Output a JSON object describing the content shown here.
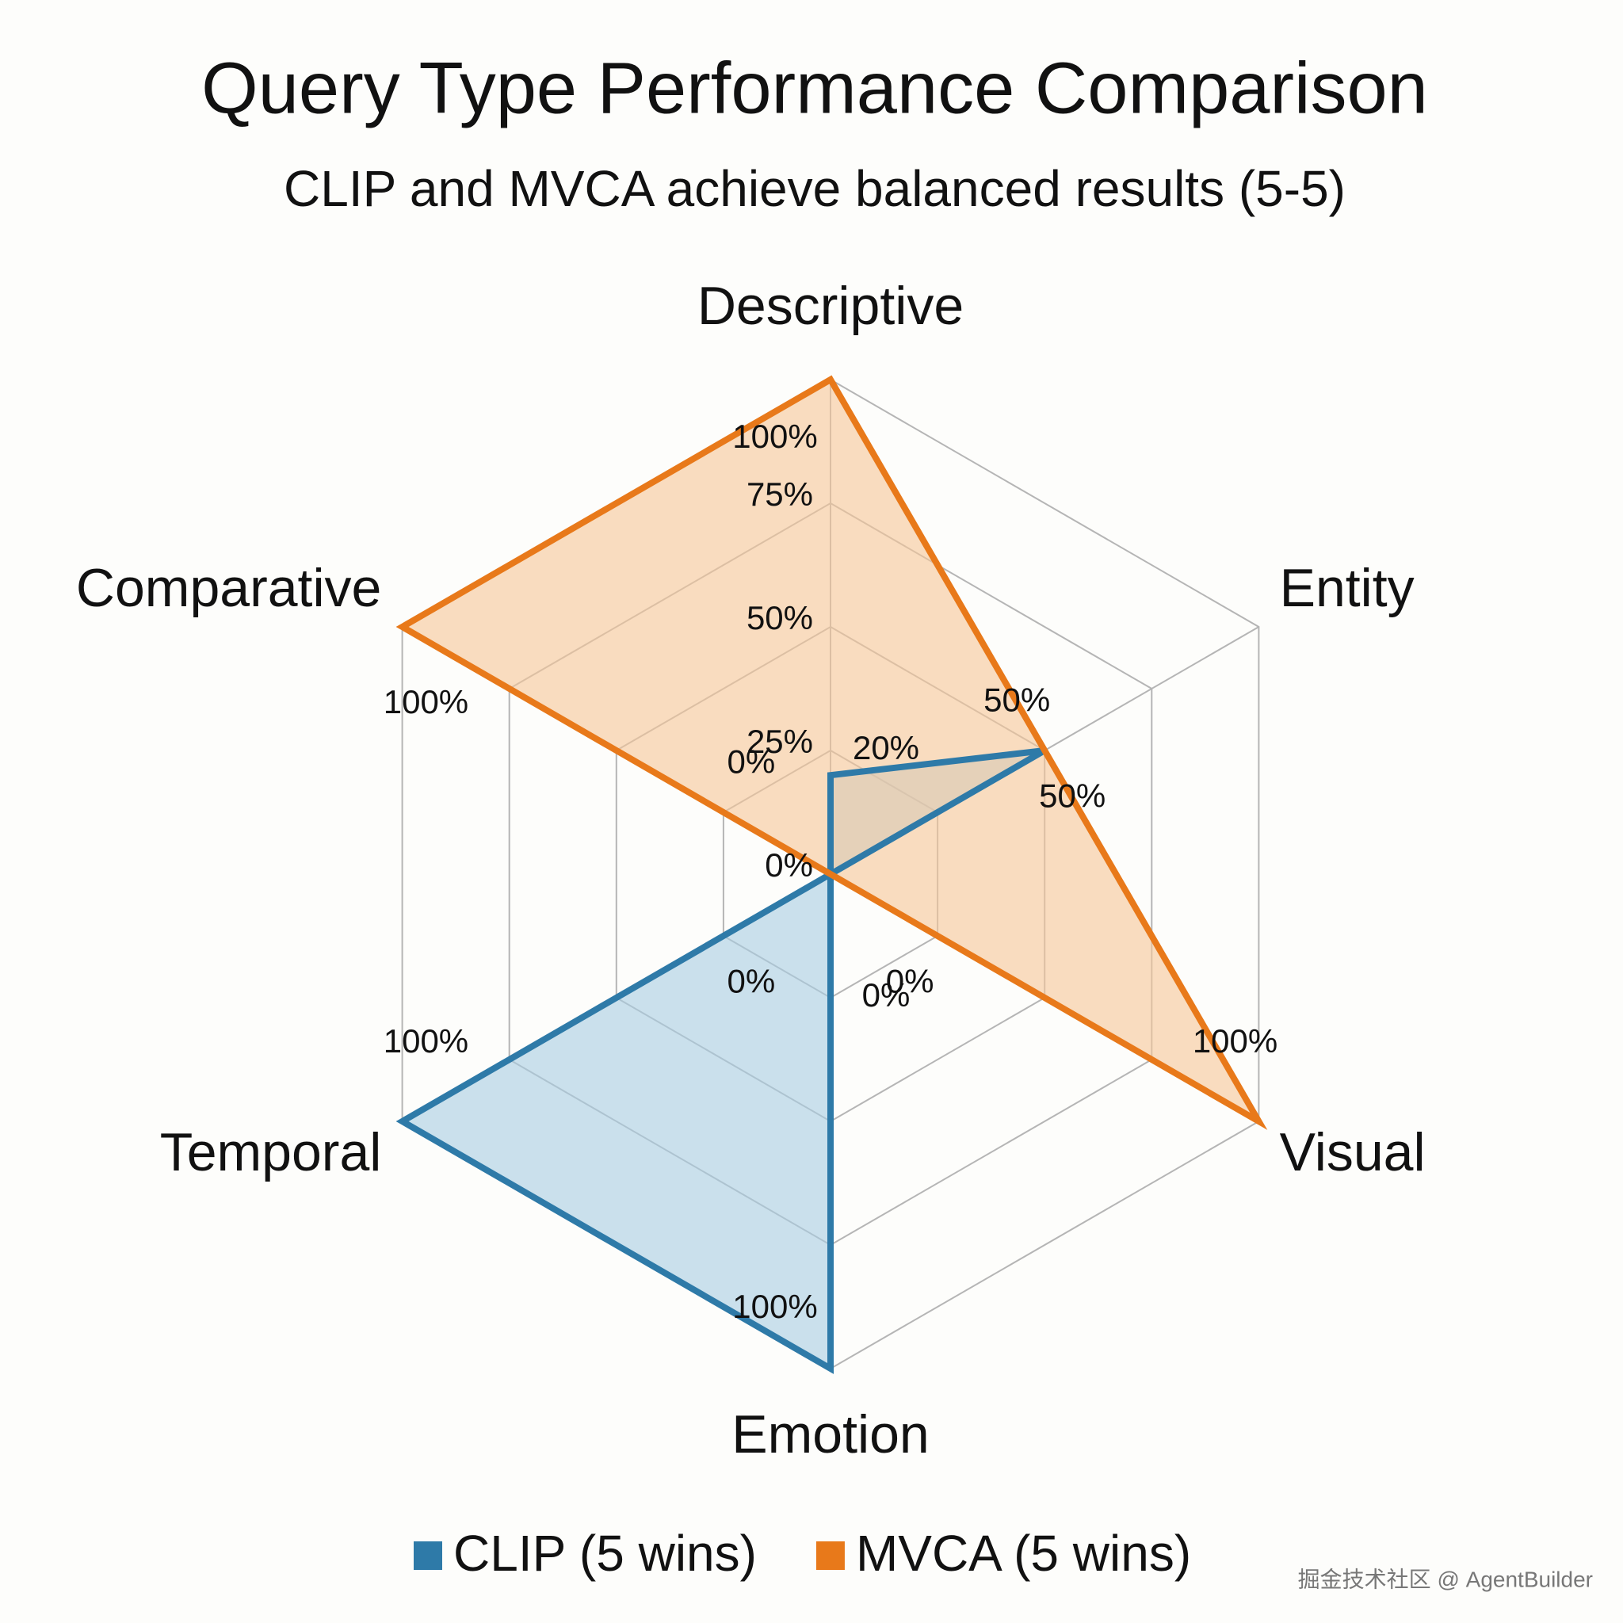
{
  "chart_data": {
    "type": "radar",
    "title": "Query Type Performance Comparison",
    "subtitle": "CLIP and MVCA achieve balanced results (5-5)",
    "categories": [
      "Descriptive",
      "Entity",
      "Visual",
      "Emotion",
      "Temporal",
      "Comparative"
    ],
    "series": [
      {
        "name": "CLIP (5 wins)",
        "color": "#2e7aa8",
        "fill": "#a9cde3",
        "values": [
          20,
          50,
          0,
          100,
          100,
          0
        ],
        "value_labels": [
          "20%",
          "50%",
          "0%",
          "100%",
          "100%",
          "0%"
        ]
      },
      {
        "name": "MVCA (5 wins)",
        "color": "#e8791a",
        "fill": "#f7c697",
        "values": [
          100,
          50,
          100,
          0,
          0,
          100
        ],
        "value_labels": [
          "100%",
          "50%",
          "100%",
          "0%",
          "0%",
          "100%"
        ]
      }
    ],
    "rlim": [
      0,
      100
    ],
    "rticks": [
      {
        "value": 0,
        "label": "0%"
      },
      {
        "value": 25,
        "label": "25%"
      },
      {
        "value": 50,
        "label": "50%"
      },
      {
        "value": 75,
        "label": "75%"
      }
    ],
    "grid": true,
    "legend": "bottom",
    "watermark": "掘金技术社区 @ AgentBuilder"
  }
}
